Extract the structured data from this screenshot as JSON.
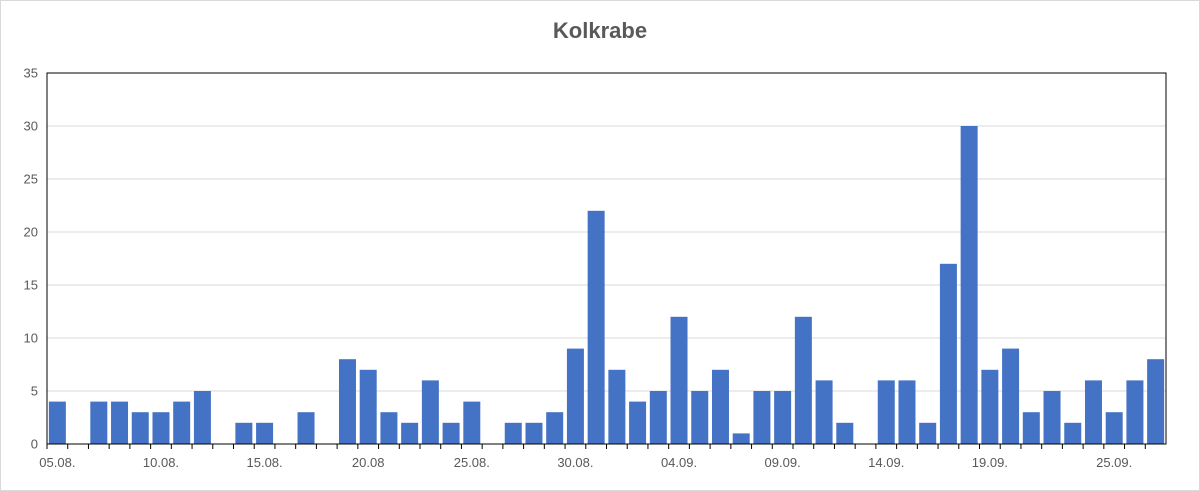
{
  "chart_data": {
    "type": "bar",
    "title": "Kolkrabe",
    "xlabel": "",
    "ylabel": "",
    "ylim": [
      0,
      35
    ],
    "yticks": [
      0,
      5,
      10,
      15,
      20,
      25,
      30,
      35
    ],
    "grid": true,
    "legend": "none",
    "bar_color": "#4472C4",
    "categories": [
      "05.08.",
      "06.08.",
      "07.08.",
      "08.08.",
      "09.08.",
      "10.08.",
      "11.08.",
      "12.08.",
      "13.08.",
      "14.08.",
      "15.08.",
      "16.08.",
      "17.08.",
      "18.08.",
      "19.08.",
      "20.08",
      "21.08.",
      "22.08.",
      "23.08.",
      "24.08.",
      "25.08.",
      "26.08.",
      "27.08.",
      "28.08.",
      "29.08.",
      "30.08.",
      "31.08.",
      "01.09.",
      "02.09.",
      "03.09.",
      "04.09.",
      "05.09.",
      "06.09.",
      "07.09.",
      "08.09.",
      "09.09.",
      "10.09.",
      "11.09.",
      "12.09.",
      "13.09.",
      "14.09.",
      "15.09.",
      "16.09.",
      "17.09.",
      "18.09.",
      "19.09.",
      "20.09.",
      "21.09.",
      "22.09.",
      "23.09.",
      "24.09.",
      "25.09.",
      "26.09.",
      "27.09."
    ],
    "values": [
      4,
      0,
      4,
      4,
      3,
      3,
      4,
      5,
      0,
      2,
      2,
      0,
      3,
      0,
      8,
      7,
      3,
      2,
      6,
      2,
      4,
      0,
      2,
      2,
      3,
      9,
      22,
      7,
      4,
      5,
      12,
      5,
      7,
      1,
      5,
      5,
      12,
      6,
      2,
      0,
      6,
      6,
      2,
      17,
      30,
      7,
      9,
      3,
      5,
      2,
      6,
      3,
      6,
      8
    ],
    "xtick_labels": [
      "05.08.",
      "10.08.",
      "15.08.",
      "20.08",
      "25.08.",
      "30.08.",
      "04.09.",
      "09.09.",
      "14.09.",
      "19.09.",
      "25.09."
    ]
  }
}
